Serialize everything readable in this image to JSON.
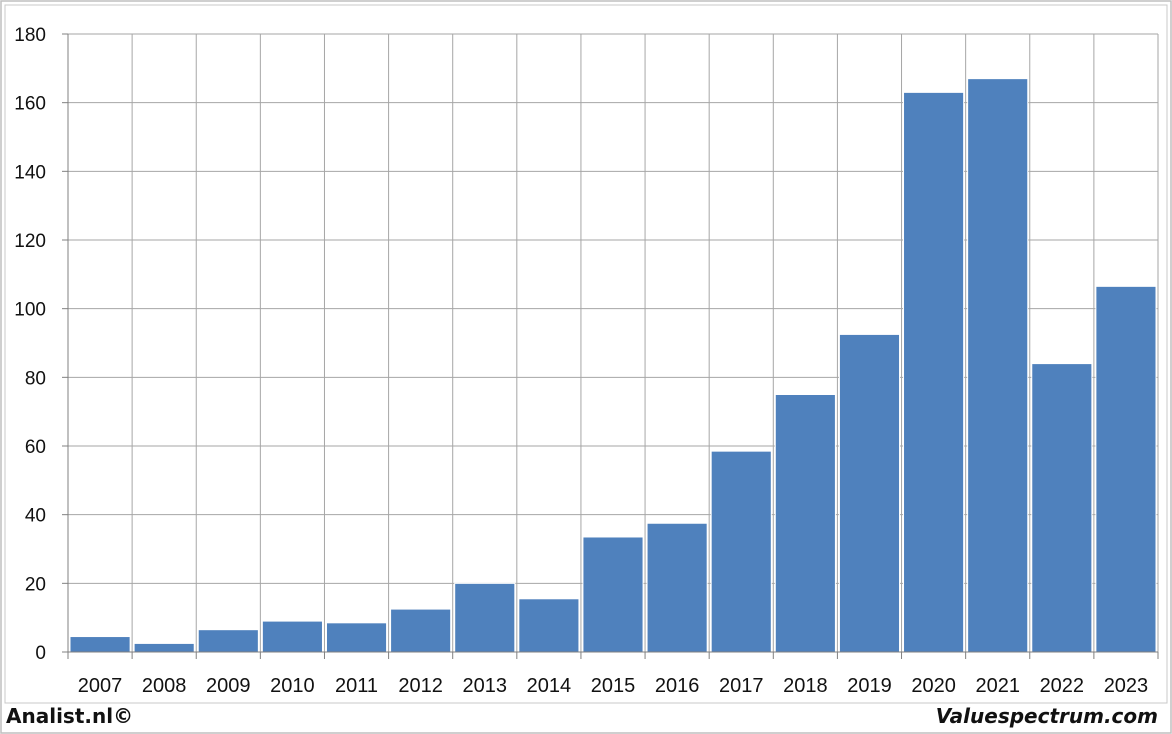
{
  "chart_data": {
    "type": "bar",
    "categories": [
      "2007",
      "2008",
      "2009",
      "2010",
      "2011",
      "2012",
      "2013",
      "2014",
      "2015",
      "2016",
      "2017",
      "2018",
      "2019",
      "2020",
      "2021",
      "2022",
      "2023"
    ],
    "values": [
      4.5,
      2.5,
      6.5,
      9,
      8.5,
      12.5,
      20,
      15.5,
      33.5,
      37.5,
      58.5,
      75,
      92.5,
      163,
      167,
      84,
      106.5
    ],
    "ylim": [
      0,
      180
    ],
    "yticks": [
      0,
      20,
      40,
      60,
      80,
      100,
      120,
      140,
      160,
      180
    ],
    "grid": true,
    "bar_color": "#4f81bd",
    "title": "",
    "xlabel": "",
    "ylabel": ""
  },
  "footer": {
    "left": "Analist.nl©",
    "right": "Valuespectrum.com"
  }
}
